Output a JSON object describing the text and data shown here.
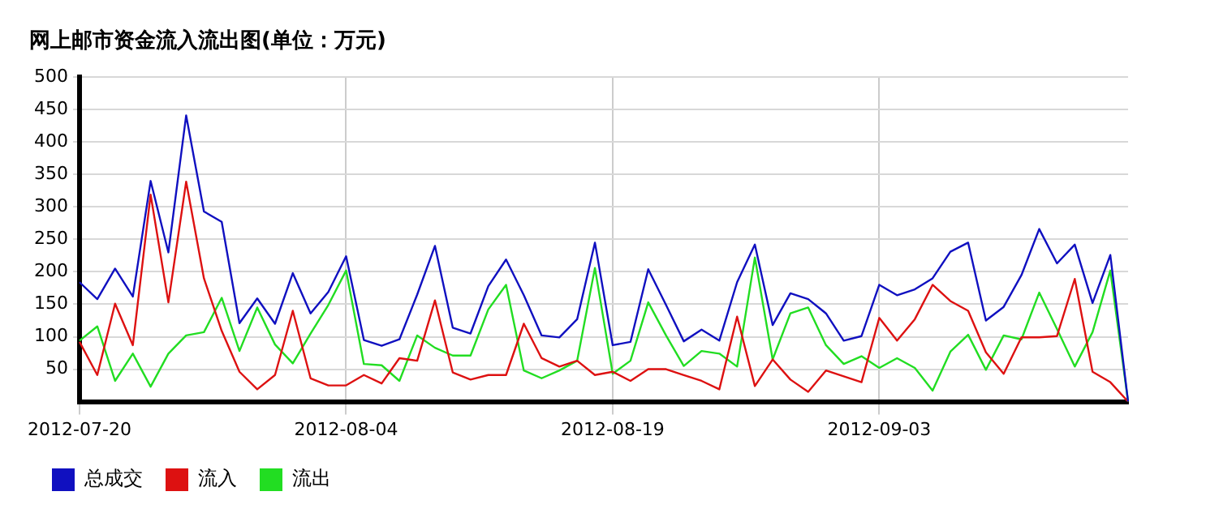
{
  "chart_data": {
    "type": "line",
    "title": "网上邮市资金流入流出图(单位：万元)",
    "categories": [
      "2012-07-20",
      null,
      null,
      null,
      null,
      null,
      null,
      null,
      null,
      null,
      null,
      null,
      null,
      null,
      null,
      "2012-08-04",
      null,
      null,
      null,
      null,
      null,
      null,
      null,
      null,
      null,
      null,
      null,
      null,
      null,
      null,
      "2012-08-19",
      null,
      null,
      null,
      null,
      null,
      null,
      null,
      null,
      null,
      null,
      null,
      null,
      null,
      null,
      "2012-09-03",
      null,
      null,
      null,
      null,
      null,
      null,
      null,
      null,
      null,
      null,
      null,
      null,
      null,
      null
    ],
    "series": [
      {
        "name": "总成交",
        "color": "#1010c0",
        "values": [
          184,
          158,
          205,
          162,
          340,
          230,
          441,
          293,
          277,
          121,
          159,
          120,
          198,
          136,
          169,
          224,
          95,
          86,
          96,
          165,
          240,
          114,
          105,
          178,
          219,
          164,
          102,
          99,
          127,
          245,
          87,
          92,
          204,
          149,
          93,
          111,
          94,
          184,
          242,
          118,
          167,
          158,
          136,
          94,
          101,
          180,
          164,
          173,
          190,
          231,
          245,
          125,
          146,
          195,
          266,
          213,
          242,
          152,
          226,
          0
        ]
      },
      {
        "name": "流入",
        "color": "#dd1111",
        "values": [
          92,
          41,
          151,
          87,
          319,
          153,
          339,
          190,
          109,
          46,
          19,
          41,
          140,
          36,
          25,
          25,
          41,
          28,
          67,
          63,
          156,
          45,
          34,
          41,
          41,
          120,
          67,
          54,
          63,
          41,
          46,
          32,
          50,
          50,
          41,
          32,
          19,
          131,
          24,
          65,
          34,
          15,
          48,
          39,
          30,
          129,
          94,
          127,
          180,
          155,
          140,
          76,
          43,
          99,
          99,
          101,
          189,
          46,
          30,
          0
        ]
      },
      {
        "name": "流出",
        "color": "#22dd22",
        "values": [
          94,
          116,
          32,
          74,
          23,
          74,
          102,
          107,
          160,
          78,
          145,
          88,
          59,
          105,
          149,
          202,
          58,
          56,
          32,
          102,
          83,
          71,
          71,
          142,
          180,
          48,
          36,
          48,
          63,
          206,
          43,
          63,
          153,
          102,
          55,
          78,
          74,
          54,
          222,
          65,
          136,
          145,
          87,
          58,
          70,
          52,
          67,
          52,
          17,
          77,
          103,
          49,
          102,
          96,
          168,
          112,
          54,
          107,
          202,
          0
        ]
      }
    ],
    "ylim": [
      0,
      500
    ],
    "yticks": [
      50,
      100,
      150,
      200,
      250,
      300,
      350,
      400,
      450,
      500
    ],
    "grid": true,
    "legend": "bottom",
    "marker": "none",
    "line_style": "solid"
  }
}
